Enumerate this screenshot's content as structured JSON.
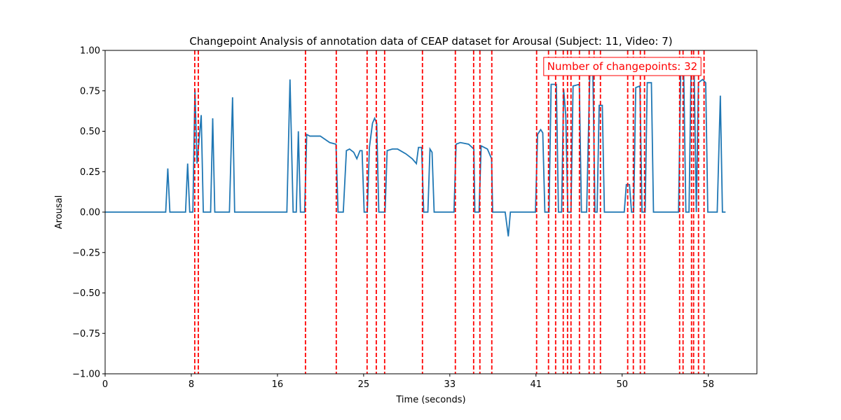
{
  "chart_data": {
    "type": "line",
    "title": "Changepoint Analysis of annotation data of CEAP dataset for Arousal (Subject: 11, Video: 7)",
    "x_label": "Time (seconds)",
    "y_label": "Arousal",
    "annotation": "Number of changepoints: 32",
    "color": "#1f77b4",
    "changepoint_color": "#ff0000",
    "xlim": [
      0,
      62.4
    ],
    "ylim": [
      -1,
      1
    ],
    "xticks": [
      {
        "value": 0,
        "label": "0"
      },
      {
        "value": 8.25,
        "label": "8"
      },
      {
        "value": 16.5,
        "label": "16"
      },
      {
        "value": 24.75,
        "label": "25"
      },
      {
        "value": 33,
        "label": "33"
      },
      {
        "value": 41.25,
        "label": "41"
      },
      {
        "value": 49.5,
        "label": "50"
      },
      {
        "value": 57.75,
        "label": "58"
      }
    ],
    "yticks": [
      {
        "value": -1,
        "label": "−1.00"
      },
      {
        "value": -0.75,
        "label": "−0.75"
      },
      {
        "value": -0.5,
        "label": "−0.50"
      },
      {
        "value": -0.25,
        "label": "−0.25"
      },
      {
        "value": 0,
        "label": "0.00"
      },
      {
        "value": 0.25,
        "label": "0.25"
      },
      {
        "value": 0.5,
        "label": "0.50"
      },
      {
        "value": 0.75,
        "label": "0.75"
      },
      {
        "value": 1,
        "label": "1.00"
      }
    ],
    "changepoints": [
      8.58,
      8.92,
      19.18,
      22.13,
      25.08,
      25.96,
      26.76,
      30.38,
      33.53,
      35.28,
      35.88,
      37.02,
      41.31,
      42.45,
      43.13,
      43.86,
      44.27,
      44.6,
      45.41,
      46.34,
      46.81,
      47.42,
      50.03,
      50.57,
      51.24,
      51.64,
      55.0,
      55.33,
      56.14,
      56.34,
      56.81,
      57.34
    ],
    "x": [
      0,
      5.8,
      6.0,
      6.2,
      7.7,
      7.9,
      8.1,
      8.4,
      8.6,
      8.8,
      9.2,
      9.4,
      10.1,
      10.3,
      10.5,
      11.9,
      12.2,
      12.4,
      17.4,
      17.7,
      18.0,
      18.3,
      18.5,
      18.7,
      19.1,
      19.3,
      19.6,
      20.6,
      21.5,
      22.1,
      22.3,
      22.8,
      23.1,
      23.4,
      23.8,
      24.1,
      24.4,
      24.6,
      24.8,
      25.1,
      25.3,
      25.6,
      25.8,
      26.0,
      26.2,
      26.8,
      27.0,
      27.5,
      28.0,
      28.8,
      29.4,
      29.8,
      30.0,
      30.3,
      30.5,
      30.9,
      31.1,
      31.3,
      31.5,
      33.4,
      33.6,
      34.0,
      34.8,
      35.3,
      35.4,
      35.8,
      36.0,
      36.6,
      37.0,
      37.1,
      38.3,
      38.6,
      38.8,
      41.2,
      41.4,
      41.7,
      41.9,
      42.1,
      42.5,
      42.7,
      43.2,
      43.4,
      43.7,
      43.9,
      44.1,
      44.3,
      44.6,
      44.8,
      45.4,
      45.6,
      46.1,
      46.4,
      46.7,
      46.9,
      47.1,
      47.3,
      47.6,
      47.8,
      49.7,
      49.9,
      50.2,
      50.4,
      50.6,
      50.8,
      51.2,
      51.4,
      51.7,
      51.9,
      52.3,
      52.5,
      54.9,
      55.1,
      55.4,
      55.6,
      55.9,
      56.1,
      56.4,
      56.6,
      56.8,
      57.2,
      57.5,
      57.7,
      58.6,
      58.9,
      59.1,
      59.4
    ],
    "values": [
      0,
      0,
      0.27,
      0,
      0,
      0.3,
      0,
      0,
      0.76,
      0.3,
      0.6,
      0,
      0,
      0.58,
      0,
      0,
      0.71,
      0,
      0,
      0.82,
      0,
      0,
      0.5,
      0,
      0,
      0.48,
      0.47,
      0.47,
      0.43,
      0.42,
      0,
      0,
      0.38,
      0.39,
      0.37,
      0.33,
      0.38,
      0.38,
      0,
      0,
      0.4,
      0.55,
      0.58,
      0.55,
      0,
      0,
      0.38,
      0.39,
      0.39,
      0.36,
      0.33,
      0.3,
      0.4,
      0.4,
      0,
      0,
      0.39,
      0.37,
      0,
      0,
      0.42,
      0.43,
      0.42,
      0.39,
      0,
      0,
      0.41,
      0.39,
      0.33,
      0,
      0,
      -0.15,
      0,
      0,
      0.48,
      0.51,
      0.49,
      0,
      0,
      0.79,
      0.79,
      0,
      0,
      0.76,
      0.6,
      0,
      0,
      0.78,
      0.79,
      0,
      0,
      0.85,
      0.85,
      0,
      0,
      0.66,
      0.66,
      0,
      0,
      0.17,
      0.17,
      0,
      0,
      0.77,
      0.78,
      0,
      0,
      0.8,
      0.8,
      0,
      0,
      0.85,
      0.84,
      0,
      0,
      0.9,
      0.85,
      0,
      0.8,
      0.82,
      0.8,
      0,
      0,
      0.72,
      0,
      0
    ]
  }
}
